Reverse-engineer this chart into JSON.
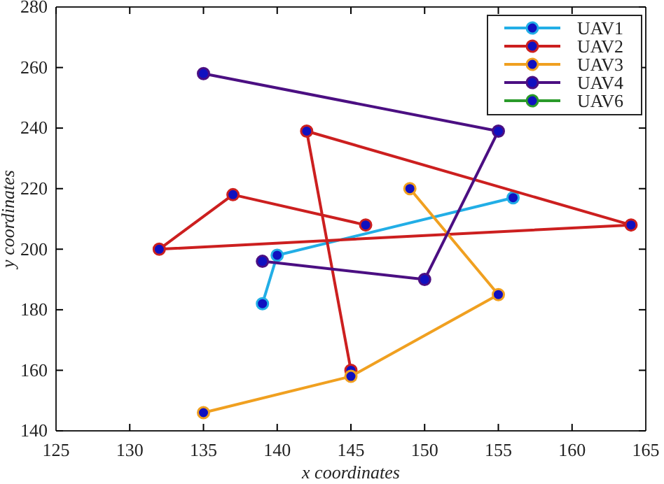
{
  "chart_data": {
    "type": "line",
    "xlabel": "x coordinates",
    "ylabel": "y coordinates",
    "xlim": [
      125,
      165
    ],
    "xticks": [
      125,
      130,
      135,
      140,
      145,
      150,
      155,
      160,
      165
    ],
    "ylim": [
      140,
      280
    ],
    "yticks": [
      140,
      160,
      180,
      200,
      220,
      240,
      260,
      280
    ],
    "marker": "circle",
    "legend": "top right",
    "grid": false,
    "series": [
      {
        "name": "UAV1",
        "color": "#22aee6",
        "x": [
          139,
          140,
          156
        ],
        "values": [
          182,
          198,
          217
        ]
      },
      {
        "name": "UAV2",
        "color": "#cc1f1f",
        "x": [
          146,
          137,
          132,
          164,
          142,
          145
        ],
        "values": [
          208,
          218,
          200,
          208,
          239,
          160
        ]
      },
      {
        "name": "UAV3",
        "color": "#f0a020",
        "x": [
          149,
          155,
          145,
          135
        ],
        "values": [
          220,
          185,
          158,
          146
        ]
      },
      {
        "name": "UAV4",
        "color": "#4b0f82",
        "x": [
          139,
          150,
          155,
          135
        ],
        "values": [
          196,
          190,
          239,
          258
        ]
      },
      {
        "name": "UAV6",
        "color": "#2a9a2a"
      }
    ]
  }
}
